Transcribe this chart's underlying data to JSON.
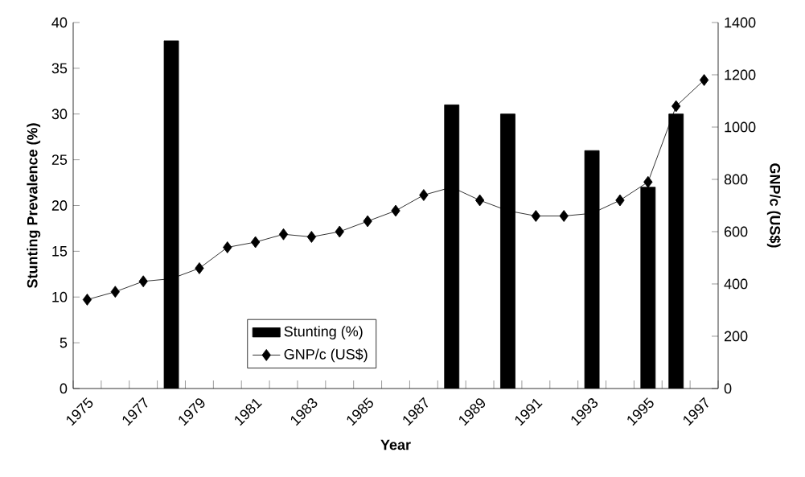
{
  "chart_data": {
    "type": "bar",
    "xlabel": "Year",
    "ylabel": "Stunting Prevalence (%)",
    "y2label": "GNP/c (US$)",
    "categories": [
      "1975",
      null,
      "1977",
      null,
      "1979",
      null,
      "1981",
      null,
      "1983",
      null,
      "1985",
      null,
      "1987",
      null,
      "1989",
      null,
      "1991",
      null,
      "1993",
      null,
      "1995",
      null,
      "1997"
    ],
    "series": [
      {
        "name": "Stunting (%)",
        "color": "#000000",
        "values": [
          null,
          null,
          null,
          38,
          null,
          null,
          null,
          null,
          null,
          null,
          null,
          null,
          null,
          31,
          null,
          30,
          null,
          null,
          26,
          null,
          22,
          30,
          null
        ]
      },
      {
        "name": "GNP/c (US$)",
        "type": "line",
        "axis": "y2",
        "color": "#000000",
        "values": [
          340,
          370,
          410,
          420,
          460,
          540,
          560,
          590,
          580,
          600,
          640,
          680,
          740,
          770,
          720,
          680,
          660,
          660,
          670,
          720,
          790,
          1080,
          1180
        ]
      }
    ],
    "marker": "diamond",
    "line_style": "solid",
    "ylim": [
      0,
      40
    ],
    "yticks": [
      0,
      5,
      10,
      15,
      20,
      25,
      30,
      35,
      40
    ],
    "y2lim": [
      0,
      1400
    ],
    "y2ticks": [
      0,
      200,
      400,
      600,
      800,
      1000,
      1200,
      1400
    ],
    "legend": "bottom"
  }
}
